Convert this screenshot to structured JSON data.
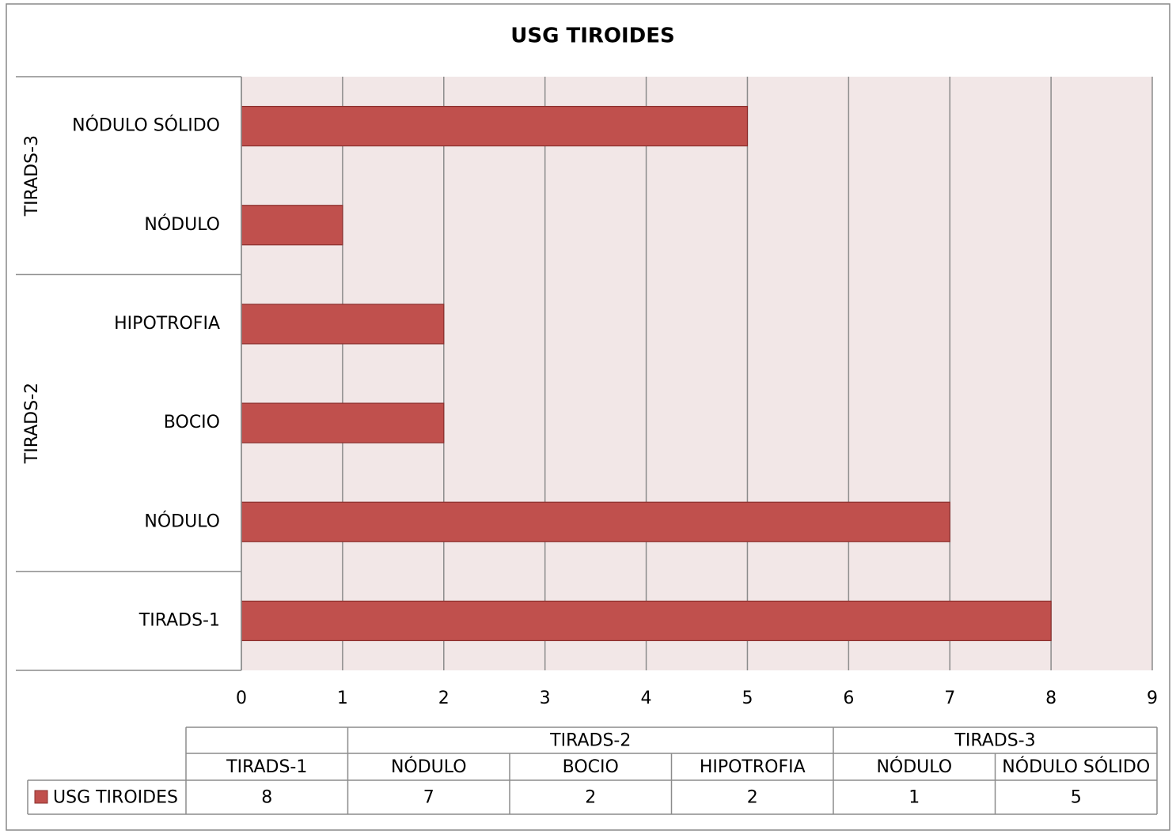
{
  "chart_data": {
    "type": "bar",
    "title": "USG TIROIDES",
    "series": [
      {
        "name": "USG TIROIDES",
        "color": "#c0504d"
      }
    ],
    "groups": [
      {
        "categories": [
          "TIRADS-1"
        ],
        "values": [
          8
        ]
      },
      {
        "name": "TIRADS-2",
        "categories": [
          "NÓDULO",
          "BOCIO",
          "HIPOTROFIA"
        ],
        "values": [
          7,
          2,
          2
        ]
      },
      {
        "name": "TIRADS-3",
        "categories": [
          "NÓDULO",
          "NÓDULO SÓLIDO"
        ],
        "values": [
          1,
          5
        ]
      }
    ],
    "xlim": [
      0,
      9
    ],
    "xticks": [
      0,
      1,
      2,
      3,
      4,
      5,
      6,
      7,
      8,
      9
    ],
    "grid": true,
    "data_table": true
  }
}
